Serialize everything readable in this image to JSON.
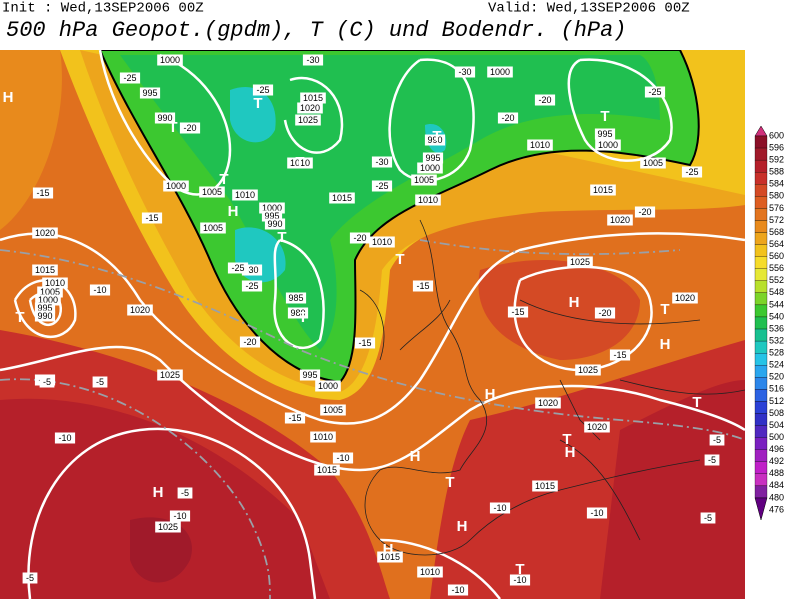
{
  "header": {
    "init": "Init : Wed,13SEP2006 00Z",
    "valid": "Valid: Wed,13SEP2006 00Z",
    "title": "500 hPa Geopot.(gpdm), T (C) und Bodendr. (hPa)"
  },
  "colorbar": {
    "levels": [
      600,
      596,
      592,
      588,
      584,
      580,
      576,
      572,
      568,
      564,
      560,
      556,
      552,
      548,
      544,
      540,
      536,
      532,
      528,
      524,
      520,
      516,
      512,
      508,
      504,
      500,
      496,
      492,
      488,
      484,
      480,
      476
    ],
    "colors": [
      "#d0307a",
      "#8b1028",
      "#a01a2a",
      "#b5202a",
      "#c8302a",
      "#d44a25",
      "#dd5e22",
      "#e2741f",
      "#e88a1c",
      "#eda51c",
      "#f2c21c",
      "#f6dc2a",
      "#e6e835",
      "#b8e02c",
      "#7cd42a",
      "#3cc830",
      "#20bf50",
      "#18c090",
      "#1fc8c0",
      "#26c3e6",
      "#2aa6ee",
      "#2c86ea",
      "#2b62e2",
      "#2a40d6",
      "#3030c6",
      "#5028c0",
      "#7a20c0",
      "#a020c0",
      "#c020c8",
      "#c830c0",
      "#8020a0",
      "#600080"
    ]
  },
  "map": {
    "isobar_labels": [
      "1000",
      "995",
      "990",
      "1015",
      "1020",
      "1025",
      "1000",
      "990",
      "995",
      "1000",
      "1005",
      "1010",
      "995",
      "1000",
      "1005",
      "1015",
      "1020",
      "1010",
      "1000",
      "1005",
      "1010",
      "1015",
      "1010",
      "1000",
      "995",
      "990",
      "1005",
      "1010",
      "1020",
      "1015",
      "1010",
      "1005",
      "1000",
      "995",
      "990",
      "985",
      "980",
      "1020",
      "1025",
      "995",
      "1000",
      "1005",
      "1010",
      "1015",
      "1025",
      "1020",
      "1025",
      "1020",
      "1020",
      "1015",
      "1015",
      "1010",
      "1025"
    ],
    "temp_labels": [
      "-25",
      "-20",
      "-30",
      "-25",
      "-30",
      "-20",
      "-25",
      "-25",
      "-20",
      "-30",
      "-25",
      "-15",
      "-15",
      "-20",
      "-25",
      "-20",
      "-30",
      "-25",
      "-20",
      "-10",
      "-15",
      "-20",
      "-15",
      "-15",
      "-10",
      "-15",
      "-10",
      "-5",
      "-5",
      "-10",
      "-15",
      "-10",
      "-5",
      "-10",
      "-10",
      "-5",
      "-5",
      "-5",
      "-5",
      "-10",
      "-10"
    ],
    "centers": [
      "H",
      "T",
      "T",
      "T",
      "T",
      "H",
      "T",
      "T",
      "T",
      "T",
      "T",
      "T",
      "H",
      "T",
      "H",
      "H",
      "H",
      "T",
      "T",
      "H",
      "H",
      "H",
      "H",
      "T",
      "T"
    ]
  }
}
